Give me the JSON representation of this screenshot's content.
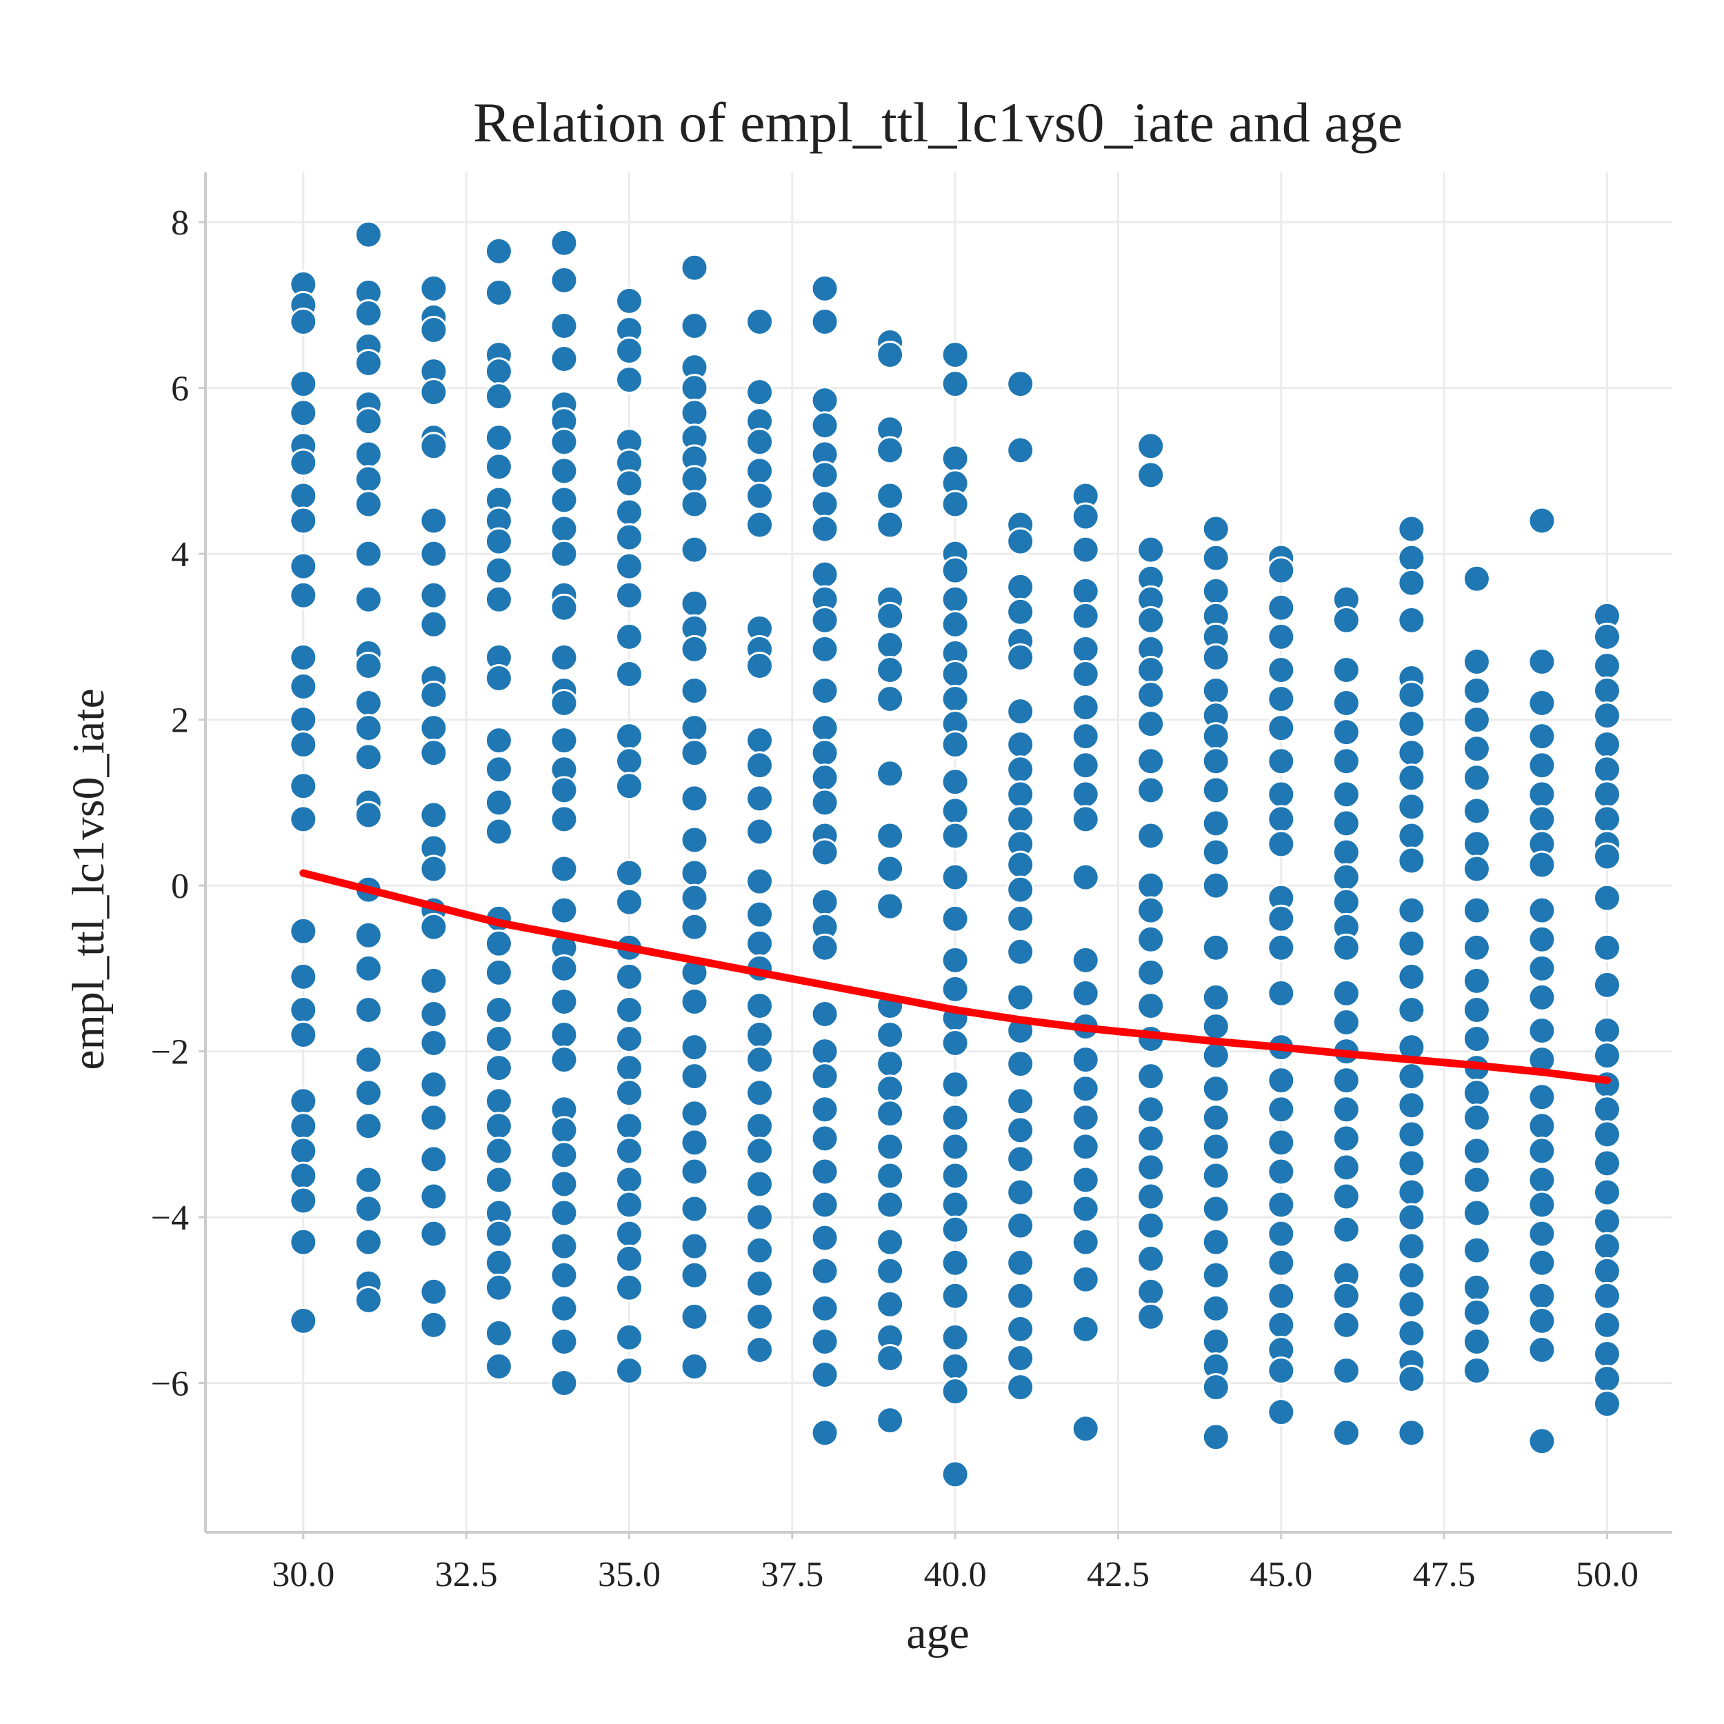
{
  "chart_data": {
    "type": "scatter",
    "title": "Relation of empl_ttl_lc1vs0_iate and age",
    "xlabel": "age",
    "ylabel": "empl_ttl_lc1vs0_iate",
    "xlim": [
      28.5,
      51.0
    ],
    "ylim": [
      -7.8,
      8.6
    ],
    "x_ticks": [
      30.0,
      32.5,
      35.0,
      37.5,
      40.0,
      42.5,
      45.0,
      47.5,
      50.0
    ],
    "x_tick_labels": [
      "30.0",
      "32.5",
      "35.0",
      "37.5",
      "40.0",
      "42.5",
      "45.0",
      "47.5",
      "50.0"
    ],
    "y_ticks": [
      -6,
      -4,
      -2,
      0,
      2,
      4,
      6,
      8
    ],
    "y_tick_labels": [
      "−6",
      "−4",
      "−2",
      "0",
      "2",
      "4",
      "6",
      "8"
    ],
    "grid": true,
    "colors": {
      "points": "#1f77b4",
      "trend": "#ff0000"
    },
    "points": [
      {
        "x": 30,
        "y": [
          7.25,
          7.0,
          6.8,
          6.05,
          5.7,
          5.3,
          5.1,
          4.7,
          4.4,
          3.85,
          3.5,
          2.75,
          2.4,
          2.0,
          1.7,
          1.2,
          0.8,
          -0.55,
          -1.1,
          -1.5,
          -1.8,
          -2.6,
          -2.9,
          -3.2,
          -3.5,
          -3.8,
          -4.3,
          -5.25
        ]
      },
      {
        "x": 31,
        "y": [
          7.85,
          7.15,
          6.9,
          6.5,
          6.3,
          5.8,
          5.6,
          5.2,
          4.9,
          4.6,
          4.0,
          3.45,
          2.8,
          2.65,
          2.2,
          1.9,
          1.55,
          1.0,
          0.85,
          -0.05,
          -0.6,
          -1.0,
          -1.5,
          -2.1,
          -2.5,
          -2.9,
          -3.55,
          -3.9,
          -4.3,
          -4.8,
          -5.0
        ]
      },
      {
        "x": 32,
        "y": [
          7.2,
          6.85,
          6.7,
          6.2,
          5.95,
          5.4,
          5.3,
          4.4,
          4.0,
          3.5,
          3.15,
          2.5,
          2.3,
          1.9,
          1.6,
          0.85,
          0.45,
          0.2,
          -0.3,
          -0.5,
          -1.15,
          -1.55,
          -1.9,
          -2.4,
          -2.8,
          -3.3,
          -3.75,
          -4.2,
          -4.9,
          -5.3
        ]
      },
      {
        "x": 33,
        "y": [
          7.65,
          7.15,
          6.4,
          6.2,
          5.9,
          5.4,
          5.05,
          4.65,
          4.4,
          4.15,
          3.8,
          3.45,
          2.75,
          2.5,
          1.75,
          1.4,
          1.0,
          0.65,
          -0.4,
          -0.7,
          -1.05,
          -1.5,
          -1.85,
          -2.2,
          -2.6,
          -2.9,
          -3.2,
          -3.55,
          -3.95,
          -4.2,
          -4.55,
          -4.85,
          -5.4,
          -5.8
        ]
      },
      {
        "x": 34,
        "y": [
          7.75,
          7.3,
          6.75,
          6.35,
          5.8,
          5.6,
          5.35,
          5.0,
          4.65,
          4.3,
          4.0,
          3.5,
          3.35,
          2.75,
          2.35,
          2.2,
          1.75,
          1.4,
          1.15,
          0.8,
          0.2,
          -0.3,
          -0.75,
          -1.0,
          -1.4,
          -1.8,
          -2.1,
          -2.7,
          -2.95,
          -3.25,
          -3.6,
          -3.95,
          -4.35,
          -4.7,
          -5.1,
          -5.5,
          -6.0
        ]
      },
      {
        "x": 35,
        "y": [
          7.05,
          6.7,
          6.45,
          6.1,
          5.35,
          5.1,
          4.85,
          4.5,
          4.2,
          3.85,
          3.5,
          3.0,
          2.55,
          1.8,
          1.5,
          1.2,
          0.15,
          -0.2,
          -0.75,
          -1.1,
          -1.5,
          -1.85,
          -2.2,
          -2.5,
          -2.9,
          -3.2,
          -3.55,
          -3.85,
          -4.2,
          -4.5,
          -4.85,
          -5.45,
          -5.85
        ]
      },
      {
        "x": 36,
        "y": [
          7.45,
          6.75,
          6.25,
          6.0,
          5.7,
          5.4,
          5.15,
          4.9,
          4.6,
          4.05,
          3.4,
          3.1,
          2.85,
          2.35,
          1.9,
          1.6,
          1.05,
          0.55,
          0.15,
          -0.15,
          -0.5,
          -1.05,
          -1.4,
          -1.95,
          -2.3,
          -2.75,
          -3.1,
          -3.45,
          -3.9,
          -4.35,
          -4.7,
          -5.2,
          -5.8
        ]
      },
      {
        "x": 37,
        "y": [
          6.8,
          5.95,
          5.6,
          5.35,
          5.0,
          4.7,
          4.35,
          3.1,
          2.85,
          2.65,
          1.75,
          1.45,
          1.05,
          0.65,
          0.05,
          -0.35,
          -0.7,
          -1.0,
          -1.45,
          -1.8,
          -2.1,
          -2.5,
          -2.9,
          -3.2,
          -3.6,
          -4.0,
          -4.4,
          -4.8,
          -5.2,
          -5.6
        ]
      },
      {
        "x": 38,
        "y": [
          7.2,
          6.8,
          5.85,
          5.55,
          5.2,
          4.95,
          4.6,
          4.3,
          3.75,
          3.45,
          3.2,
          2.85,
          2.35,
          1.9,
          1.6,
          1.3,
          1.0,
          0.6,
          0.4,
          -0.2,
          -0.5,
          -0.75,
          -1.55,
          -2.0,
          -2.3,
          -2.7,
          -3.05,
          -3.45,
          -3.85,
          -4.25,
          -4.65,
          -5.1,
          -5.5,
          -5.9,
          -6.6
        ]
      },
      {
        "x": 39,
        "y": [
          6.55,
          6.4,
          5.5,
          5.25,
          4.7,
          4.35,
          3.45,
          3.25,
          2.9,
          2.6,
          2.25,
          1.35,
          0.6,
          0.2,
          -0.25,
          -1.45,
          -1.8,
          -2.15,
          -2.45,
          -2.75,
          -3.15,
          -3.5,
          -3.85,
          -4.3,
          -4.65,
          -5.05,
          -5.45,
          -5.7,
          -6.45
        ]
      },
      {
        "x": 40,
        "y": [
          6.4,
          6.05,
          5.15,
          4.85,
          4.6,
          4.0,
          3.8,
          3.45,
          3.15,
          2.8,
          2.55,
          2.25,
          1.95,
          1.7,
          1.25,
          0.9,
          0.6,
          0.1,
          -0.4,
          -0.9,
          -1.25,
          -1.6,
          -1.9,
          -2.4,
          -2.8,
          -3.15,
          -3.5,
          -3.85,
          -4.15,
          -4.55,
          -4.95,
          -5.45,
          -5.8,
          -6.1,
          -7.1
        ]
      },
      {
        "x": 41,
        "y": [
          6.05,
          5.25,
          4.35,
          4.15,
          3.6,
          3.3,
          2.95,
          2.75,
          2.1,
          1.7,
          1.4,
          1.1,
          0.8,
          0.5,
          0.25,
          -0.05,
          -0.4,
          -0.8,
          -1.35,
          -1.75,
          -2.15,
          -2.6,
          -2.95,
          -3.3,
          -3.7,
          -4.1,
          -4.55,
          -4.95,
          -5.35,
          -5.7,
          -6.05
        ]
      },
      {
        "x": 42,
        "y": [
          4.7,
          4.45,
          4.05,
          3.55,
          3.25,
          2.85,
          2.55,
          2.15,
          1.8,
          1.45,
          1.1,
          0.8,
          0.1,
          -0.9,
          -1.3,
          -1.7,
          -2.1,
          -2.45,
          -2.8,
          -3.15,
          -3.55,
          -3.9,
          -4.3,
          -4.75,
          -5.35,
          -6.55
        ]
      },
      {
        "x": 43,
        "y": [
          5.3,
          4.95,
          4.05,
          3.7,
          3.45,
          3.2,
          2.85,
          2.6,
          2.3,
          1.95,
          1.5,
          1.15,
          0.6,
          0.0,
          -0.3,
          -0.65,
          -1.05,
          -1.45,
          -1.85,
          -2.3,
          -2.7,
          -3.05,
          -3.4,
          -3.75,
          -4.1,
          -4.5,
          -4.9,
          -5.2
        ]
      },
      {
        "x": 44,
        "y": [
          4.3,
          3.95,
          3.55,
          3.25,
          3.0,
          2.75,
          2.35,
          2.05,
          1.8,
          1.5,
          1.15,
          0.75,
          0.4,
          0.0,
          -0.75,
          -1.35,
          -1.7,
          -2.05,
          -2.45,
          -2.8,
          -3.15,
          -3.5,
          -3.9,
          -4.3,
          -4.7,
          -5.1,
          -5.5,
          -5.8,
          -6.05,
          -6.65
        ]
      },
      {
        "x": 45,
        "y": [
          3.95,
          3.8,
          3.35,
          3.0,
          2.6,
          2.25,
          1.9,
          1.5,
          1.1,
          0.8,
          0.5,
          -0.15,
          -0.4,
          -0.75,
          -1.3,
          -1.95,
          -2.35,
          -2.7,
          -3.1,
          -3.45,
          -3.85,
          -4.2,
          -4.55,
          -4.95,
          -5.3,
          -5.6,
          -5.85,
          -6.35
        ]
      },
      {
        "x": 46,
        "y": [
          3.45,
          3.2,
          2.6,
          2.2,
          1.85,
          1.5,
          1.1,
          0.75,
          0.4,
          0.1,
          -0.2,
          -0.5,
          -0.75,
          -1.3,
          -1.65,
          -2.0,
          -2.35,
          -2.7,
          -3.05,
          -3.4,
          -3.75,
          -4.15,
          -4.7,
          -4.95,
          -5.3,
          -5.85,
          -6.6
        ]
      },
      {
        "x": 47,
        "y": [
          4.3,
          3.95,
          3.65,
          3.2,
          2.5,
          2.3,
          1.95,
          1.6,
          1.3,
          0.95,
          0.6,
          0.3,
          -0.3,
          -0.7,
          -1.1,
          -1.5,
          -1.95,
          -2.3,
          -2.65,
          -3.0,
          -3.35,
          -3.7,
          -4.0,
          -4.35,
          -4.7,
          -5.05,
          -5.4,
          -5.75,
          -5.95,
          -6.6
        ]
      },
      {
        "x": 48,
        "y": [
          3.7,
          2.7,
          2.35,
          2.0,
          1.65,
          1.3,
          0.9,
          0.5,
          0.2,
          -0.3,
          -0.75,
          -1.15,
          -1.5,
          -1.85,
          -2.2,
          -2.5,
          -2.8,
          -3.2,
          -3.55,
          -3.95,
          -4.4,
          -4.85,
          -5.15,
          -5.5,
          -5.85
        ]
      },
      {
        "x": 49,
        "y": [
          4.4,
          2.7,
          2.2,
          1.8,
          1.45,
          1.1,
          0.8,
          0.5,
          0.25,
          -0.3,
          -0.65,
          -1.0,
          -1.35,
          -1.75,
          -2.1,
          -2.55,
          -2.9,
          -3.2,
          -3.55,
          -3.85,
          -4.2,
          -4.55,
          -4.95,
          -5.25,
          -5.6,
          -6.7
        ]
      },
      {
        "x": 50,
        "y": [
          3.25,
          3.0,
          2.65,
          2.35,
          2.05,
          1.7,
          1.4,
          1.1,
          0.8,
          0.5,
          0.35,
          -0.15,
          -0.75,
          -1.2,
          -1.75,
          -2.05,
          -2.4,
          -2.7,
          -3.0,
          -3.35,
          -3.7,
          -4.05,
          -4.35,
          -4.65,
          -4.95,
          -5.3,
          -5.65,
          -5.95,
          -6.25
        ]
      }
    ],
    "trend_line": {
      "x": [
        30,
        31,
        32,
        33,
        34,
        35,
        36,
        37,
        38,
        39,
        40,
        41,
        42,
        43,
        44,
        45,
        46,
        47,
        48,
        49,
        50
      ],
      "y": [
        0.15,
        -0.05,
        -0.25,
        -0.45,
        -0.6,
        -0.75,
        -0.9,
        -1.05,
        -1.2,
        -1.35,
        -1.5,
        -1.62,
        -1.72,
        -1.8,
        -1.88,
        -1.95,
        -2.03,
        -2.1,
        -2.17,
        -2.25,
        -2.35
      ]
    }
  }
}
